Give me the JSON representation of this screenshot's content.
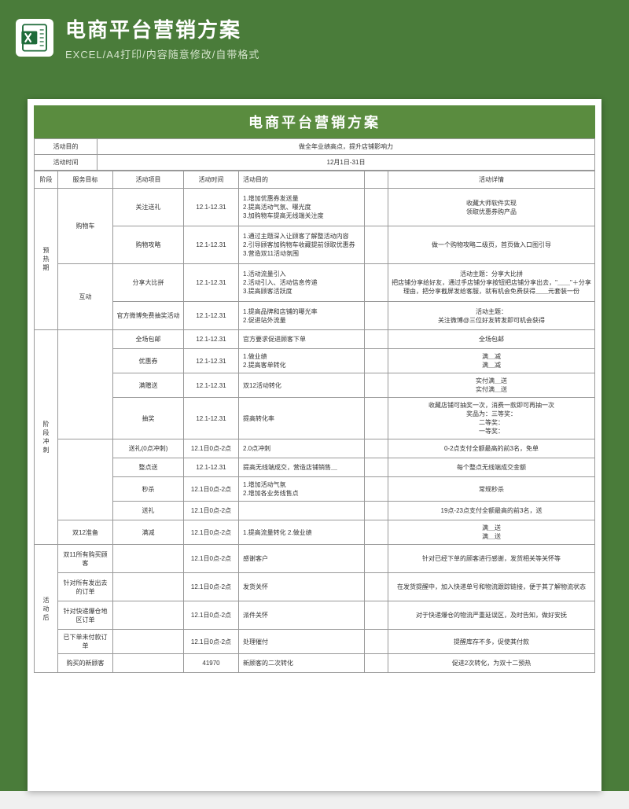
{
  "header": {
    "title": "电商平台营销方案",
    "subtitle": "EXCEL/A4打印/内容随意修改/自带格式"
  },
  "colors": {
    "brand": "#4a7c3a",
    "title_bg": "#5a8c3f",
    "border": "#999999",
    "page_bg": "#ffffff"
  },
  "doc": {
    "title": "电商平台营销方案",
    "info": [
      {
        "label": "活动目的",
        "value": "做全年业绩高点，提升店铺影响力"
      },
      {
        "label": "活动时间",
        "value": "12月1日-31日"
      }
    ],
    "columns": [
      "阶段",
      "服务目标",
      "活动项目",
      "活动时间",
      "活动目的",
      "",
      "活动详情"
    ],
    "rows": [
      {
        "phase": "预热期",
        "phase_rows": 4,
        "target": "购物车",
        "target_rows": 2,
        "project": "关注送礼",
        "time": "12.1-12.31",
        "purpose": "1.增加优惠券发送量\n2.提高活动气氛、曝光度\n3.加购物车提高无线端关注度",
        "detail": "收藏大师软件实现\n领取优惠券购产品",
        "h": "tall"
      },
      {
        "project": "购物攻略",
        "time": "12.1-12.31",
        "purpose": "1.通过主题深入让顾客了解整活动内容\n2.引导顾客加购物车收藏提前领取优惠券\n3.营造双11活动氛围",
        "detail": "做一个购物攻略二级页，首页做入口图引导",
        "h": "tall"
      },
      {
        "target": "互动",
        "target_rows": 2,
        "project": "分享大比拼",
        "time": "12.1-12.31",
        "purpose": "1.活动流量引入\n2.活动引入、活动信息传递\n3.提高顾客活跃度",
        "detail": "活动主题：分享大比拼\n把店铺分享给好友，通过手店铺分享按钮把店铺分享出去，\"＿＿\"＋分享理由，把分享截屏发给客服，就有机会免费获得＿＿元套装一份",
        "h": "tall"
      },
      {
        "project": "官方微博免费抽奖活动",
        "time": "12.1-12.31",
        "purpose": "1.提高品牌和店铺的曝光率\n2.促进站外流量",
        "detail": "活动主题：\n关注微博@三位好友转发即可机会获得",
        "h": "med"
      },
      {
        "phase": "阶段冲刺",
        "phase_rows": 9,
        "target": "",
        "target_rows": 4,
        "project": "全场包邮",
        "time": "12.1-12.31",
        "purpose": "官方要求促进顾客下单",
        "detail": "全场包邮",
        "h": "sm"
      },
      {
        "project": "优惠券",
        "time": "12.1-12.31",
        "purpose": "1.做业绩\n2.提高客单转化",
        "detail": "满＿减\n满＿减",
        "h": "sm"
      },
      {
        "project": "满赠送",
        "time": "12.1-12.31",
        "purpose": "双12活动转化",
        "detail": "实付满＿送\n实付满＿送",
        "h": "sm"
      },
      {
        "project": "抽奖",
        "time": "12.1-12.31",
        "purpose": "提高转化率",
        "detail": "收藏店铺可抽奖一次，消费一款即可再抽一次\n奖品为：三等奖：\n二等奖：\n一等奖：",
        "h": "tall"
      },
      {
        "target": "",
        "target_rows": 4,
        "project": "送礼(0点冲刺)",
        "time": "12.1日0点-2点",
        "purpose": "2.0点冲刺",
        "detail": "0-2点支付全额最高的前3名，免单",
        "h": "sm"
      },
      {
        "project": "整点送",
        "time": "12.1-12.31",
        "purpose": "提高无线端成交，营造店铺销售＿",
        "detail": "每个整点无线端成交金额",
        "h": "sm"
      },
      {
        "project": "秒杀",
        "time": "12.1日0点-2点",
        "purpose": "1.增加活动气氛\n2.增加各业务线售点",
        "detail": "常规秒杀",
        "h": "sm"
      },
      {
        "project": "送礼",
        "time": "12.1日0点-2点",
        "purpose": "",
        "detail": "19点-23点支付全额最高的前3名，送",
        "h": "sm"
      },
      {
        "target": "双12准备",
        "target_rows": 1,
        "project": "满减",
        "time": "12.1日0点-2点",
        "purpose": "1.提高流量转化 2.做业绩",
        "detail": "满＿送\n满＿送",
        "h": "sm"
      },
      {
        "phase": "活动后",
        "phase_rows": 5,
        "target": "双11所有购买顾客",
        "target_rows": 1,
        "project": "",
        "time": "12.1日0点-2点",
        "purpose": "感谢客户",
        "detail": "针对已经下单的顾客进行感谢，发货相关等关怀等",
        "h": "med"
      },
      {
        "target": "针对所有发出去的订单",
        "target_rows": 1,
        "project": "",
        "time": "12.1日0点-2点",
        "purpose": "发货关怀",
        "detail": "在发货提醒中，加入快递单号和物流跟踪链接，便于其了解物流状态",
        "h": "med"
      },
      {
        "target": "针对快递爆仓地区订单",
        "target_rows": 1,
        "project": "",
        "time": "12.1日0点-2点",
        "purpose": "派件关怀",
        "detail": "对于快递爆仓的物流严重延误区，及时告知，做好安抚",
        "h": "med"
      },
      {
        "target": "已下单未付款订单",
        "target_rows": 1,
        "project": "",
        "time": "12.1日0点-2点",
        "purpose": "处理催付",
        "detail": "提醒库存不多，促使其付款",
        "h": "sm"
      },
      {
        "target": "购买的新顾客",
        "target_rows": 1,
        "project": "",
        "time": "41970",
        "purpose": "新顾客的二次转化",
        "detail": "促进2次转化，为双十二预热",
        "h": "sm"
      }
    ]
  }
}
